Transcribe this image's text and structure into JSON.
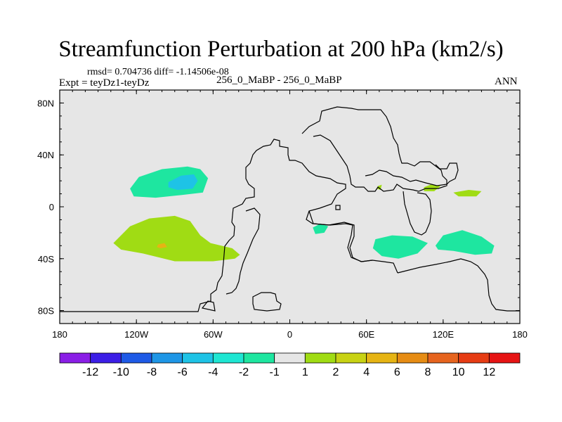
{
  "chart_data": {
    "type": "contour-map",
    "title": "Streamfunction Perturbation at 200 hPa (km2/s)",
    "stats_text": "rmsd= 0.704736 diff= -1.14506e-08",
    "expt_label": "Expt = teyDz1-teyDz",
    "case_label": "256_0_MaBP - 256_0_MaBP",
    "season": "ANN",
    "x_range": [
      -180,
      180
    ],
    "y_range": [
      -90,
      90
    ],
    "x_ticks": [
      {
        "value": -180,
        "label": "180"
      },
      {
        "value": -120,
        "label": "120W"
      },
      {
        "value": -60,
        "label": "60W"
      },
      {
        "value": 0,
        "label": "0"
      },
      {
        "value": 60,
        "label": "60E"
      },
      {
        "value": 120,
        "label": "120E"
      },
      {
        "value": 180,
        "label": "180"
      }
    ],
    "y_ticks": [
      {
        "value": 80,
        "label": "80N"
      },
      {
        "value": 40,
        "label": "40N"
      },
      {
        "value": 0,
        "label": "0"
      },
      {
        "value": -40,
        "label": "40S"
      },
      {
        "value": -80,
        "label": "80S"
      }
    ],
    "colorbar": {
      "colors": [
        "#8a1ee6",
        "#3c1ee6",
        "#1e5ae6",
        "#1e96e6",
        "#1ec3e6",
        "#1ee6d2",
        "#1ee6a0",
        "#e6e6e6",
        "#a0dc14",
        "#c8d214",
        "#e6b414",
        "#e68c14",
        "#e6641e",
        "#e63c14",
        "#e61414"
      ],
      "labels": [
        "-12",
        "-10",
        "-8",
        "-6",
        "-4",
        "-2",
        "-1",
        "1",
        "2",
        "4",
        "6",
        "8",
        "10",
        "12"
      ]
    },
    "anomalies": [
      {
        "name": "north-pacific-low",
        "level": "-1",
        "color": "#1ee6a0",
        "polygon": [
          [
            -125,
            14
          ],
          [
            -118,
            23
          ],
          [
            -100,
            29
          ],
          [
            -80,
            31
          ],
          [
            -70,
            29
          ],
          [
            -64,
            22
          ],
          [
            -68,
            11
          ],
          [
            -85,
            9
          ],
          [
            -105,
            7
          ],
          [
            -122,
            8
          ]
        ]
      },
      {
        "name": "north-pacific-low-core",
        "level": "-2",
        "color": "#1ec3e6",
        "polygon": [
          [
            -95,
            19
          ],
          [
            -85,
            24
          ],
          [
            -75,
            25
          ],
          [
            -72,
            20
          ],
          [
            -76,
            14
          ],
          [
            -88,
            13
          ],
          [
            -95,
            15
          ]
        ]
      },
      {
        "name": "south-pacific-high",
        "level": "1",
        "color": "#a0dc14",
        "polygon": [
          [
            -138,
            -28
          ],
          [
            -125,
            -15
          ],
          [
            -110,
            -9
          ],
          [
            -90,
            -7
          ],
          [
            -78,
            -11
          ],
          [
            -70,
            -22
          ],
          [
            -62,
            -28
          ],
          [
            -45,
            -32
          ],
          [
            -39,
            -37
          ],
          [
            -43,
            -40
          ],
          [
            -60,
            -42
          ],
          [
            -90,
            -42
          ],
          [
            -115,
            -36
          ],
          [
            -132,
            -33
          ]
        ]
      },
      {
        "name": "south-pacific-high-core",
        "level": "4",
        "color": "#e6b414",
        "polygon": [
          [
            -103,
            -29
          ],
          [
            -98,
            -28
          ],
          [
            -96,
            -31
          ],
          [
            -101,
            -32
          ],
          [
            -104,
            -31
          ]
        ]
      },
      {
        "name": "south-atlantic-low",
        "level": "-1",
        "color": "#1ee6a0",
        "polygon": [
          [
            18,
            -16
          ],
          [
            24,
            -13
          ],
          [
            30,
            -15
          ],
          [
            27,
            -20
          ],
          [
            20,
            -21
          ]
        ]
      },
      {
        "name": "south-indian-low",
        "level": "-1",
        "color": "#1ee6a0",
        "polygon": [
          [
            67,
            -25
          ],
          [
            80,
            -22
          ],
          [
            96,
            -23
          ],
          [
            108,
            -28
          ],
          [
            100,
            -36
          ],
          [
            85,
            -40
          ],
          [
            72,
            -38
          ],
          [
            65,
            -32
          ]
        ]
      },
      {
        "name": "australia-low",
        "level": "-1",
        "color": "#1ee6a0",
        "polygon": [
          [
            114,
            -30
          ],
          [
            120,
            -22
          ],
          [
            135,
            -18
          ],
          [
            150,
            -23
          ],
          [
            160,
            -30
          ],
          [
            158,
            -36
          ],
          [
            145,
            -37
          ],
          [
            128,
            -34
          ],
          [
            116,
            -33
          ]
        ]
      },
      {
        "name": "asia-high-small",
        "level": "1",
        "color": "#a0dc14",
        "polygon": [
          [
            105,
            15
          ],
          [
            110,
            17
          ],
          [
            118,
            16
          ],
          [
            113,
            12
          ],
          [
            105,
            12
          ]
        ]
      },
      {
        "name": "west-pacific-high",
        "level": "1",
        "color": "#a0dc14",
        "polygon": [
          [
            128,
            11
          ],
          [
            140,
            13
          ],
          [
            150,
            12
          ],
          [
            146,
            8
          ],
          [
            132,
            8
          ]
        ]
      },
      {
        "name": "central-asia-high",
        "level": "1",
        "color": "#a0dc14",
        "polygon": [
          [
            69,
            16
          ],
          [
            72,
            17
          ],
          [
            71,
            13
          ],
          [
            68,
            14
          ]
        ]
      }
    ]
  }
}
